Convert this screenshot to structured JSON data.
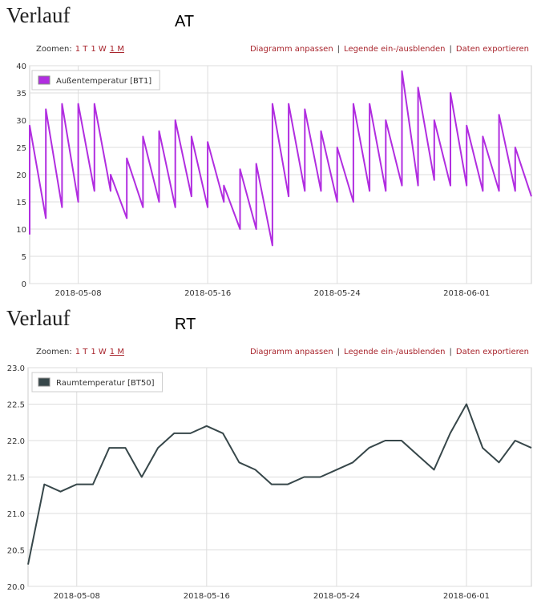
{
  "panels": [
    {
      "heading": "Verlauf",
      "label": "AT",
      "zoom_label": "Zoomen:",
      "zoom_options": [
        "1 T",
        "1 W",
        "1 M"
      ],
      "links": [
        "Diagramm anpassen",
        "Legende ein-/ausblenden",
        "Daten exportieren"
      ],
      "separator": "|"
    },
    {
      "heading": "Verlauf",
      "label": "RT",
      "zoom_label": "Zoomen:",
      "zoom_options": [
        "1 T",
        "1 W",
        "1 M"
      ],
      "links": [
        "Diagramm anpassen",
        "Legende ein-/ausblenden",
        "Daten exportieren"
      ],
      "separator": "|"
    }
  ],
  "chart_data": [
    {
      "type": "line",
      "x": [
        "2018-05-05",
        "2018-05-05",
        "2018-05-06",
        "2018-05-06",
        "2018-05-07",
        "2018-05-07",
        "2018-05-08",
        "2018-05-08",
        "2018-05-09",
        "2018-05-09",
        "2018-05-10",
        "2018-05-10",
        "2018-05-11",
        "2018-05-11",
        "2018-05-12",
        "2018-05-12",
        "2018-05-13",
        "2018-05-13",
        "2018-05-14",
        "2018-05-14",
        "2018-05-15",
        "2018-05-15",
        "2018-05-16",
        "2018-05-16",
        "2018-05-17",
        "2018-05-17",
        "2018-05-18",
        "2018-05-18",
        "2018-05-19",
        "2018-05-19",
        "2018-05-20",
        "2018-05-20",
        "2018-05-21",
        "2018-05-21",
        "2018-05-22",
        "2018-05-22",
        "2018-05-23",
        "2018-05-23",
        "2018-05-24",
        "2018-05-24",
        "2018-05-25",
        "2018-05-25",
        "2018-05-26",
        "2018-05-26",
        "2018-05-27",
        "2018-05-27",
        "2018-05-28",
        "2018-05-28",
        "2018-05-29",
        "2018-05-29",
        "2018-05-30",
        "2018-05-30",
        "2018-05-31",
        "2018-05-31",
        "2018-06-01",
        "2018-06-01",
        "2018-06-02",
        "2018-06-02",
        "2018-06-03",
        "2018-06-03",
        "2018-06-04",
        "2018-06-04",
        "2018-06-05"
      ],
      "series": [
        {
          "name": "Außentemperatur [BT1]",
          "color": "#b12ee0",
          "values": [
            9,
            29,
            12,
            32,
            14,
            33,
            15,
            33,
            17,
            33,
            17,
            20,
            12,
            23,
            14,
            27,
            15,
            28,
            14,
            30,
            16,
            27,
            14,
            26,
            15,
            18,
            10,
            21,
            10,
            22,
            7,
            33,
            16,
            33,
            17,
            32,
            17,
            28,
            15,
            25,
            15,
            33,
            17,
            33,
            17,
            30,
            18,
            39,
            18,
            36,
            19,
            30,
            18,
            35,
            18,
            29,
            17,
            27,
            17,
            31,
            17,
            25,
            16
          ]
        }
      ],
      "xlim": [
        "2018-05-05",
        "2018-06-05"
      ],
      "xticks": [
        "2018-05-08",
        "2018-05-16",
        "2018-05-24",
        "2018-06-01"
      ],
      "ylim": [
        0,
        40
      ],
      "yticks": [
        0,
        5,
        10,
        15,
        20,
        25,
        30,
        35,
        40
      ],
      "grid": true,
      "legend": "top-left"
    },
    {
      "type": "line",
      "x": [
        "2018-05-05",
        "2018-05-06",
        "2018-05-07",
        "2018-05-08",
        "2018-05-09",
        "2018-05-10",
        "2018-05-11",
        "2018-05-12",
        "2018-05-13",
        "2018-05-14",
        "2018-05-15",
        "2018-05-16",
        "2018-05-17",
        "2018-05-18",
        "2018-05-19",
        "2018-05-20",
        "2018-05-21",
        "2018-05-22",
        "2018-05-23",
        "2018-05-24",
        "2018-05-25",
        "2018-05-26",
        "2018-05-27",
        "2018-05-28",
        "2018-05-29",
        "2018-05-30",
        "2018-05-31",
        "2018-06-01",
        "2018-06-02",
        "2018-06-03",
        "2018-06-04",
        "2018-06-05"
      ],
      "series": [
        {
          "name": "Raumtemperatur [BT50]",
          "color": "#37474a",
          "values": [
            20.3,
            21.4,
            21.3,
            21.4,
            21.4,
            21.9,
            21.9,
            21.5,
            21.9,
            22.1,
            22.1,
            22.2,
            22.1,
            21.7,
            21.6,
            21.4,
            21.4,
            21.5,
            21.5,
            21.6,
            21.7,
            21.9,
            22.0,
            22.0,
            21.8,
            21.6,
            22.1,
            22.5,
            21.9,
            21.7,
            22.0,
            21.9
          ]
        }
      ],
      "xlim": [
        "2018-05-05",
        "2018-06-05"
      ],
      "xticks": [
        "2018-05-08",
        "2018-05-16",
        "2018-05-24",
        "2018-06-01"
      ],
      "ylim": [
        20,
        23
      ],
      "yticks": [
        {
          "value": 20,
          "label": "20.0"
        },
        {
          "value": 20.5,
          "label": "20.5"
        },
        {
          "value": 21,
          "label": "21.0"
        },
        {
          "value": 21.5,
          "label": "21.5"
        },
        {
          "value": 22,
          "label": "22.0"
        },
        {
          "value": 22.5,
          "label": "22.5"
        },
        {
          "value": 23,
          "label": "23.0"
        }
      ],
      "grid": true,
      "legend": "top-left"
    }
  ]
}
